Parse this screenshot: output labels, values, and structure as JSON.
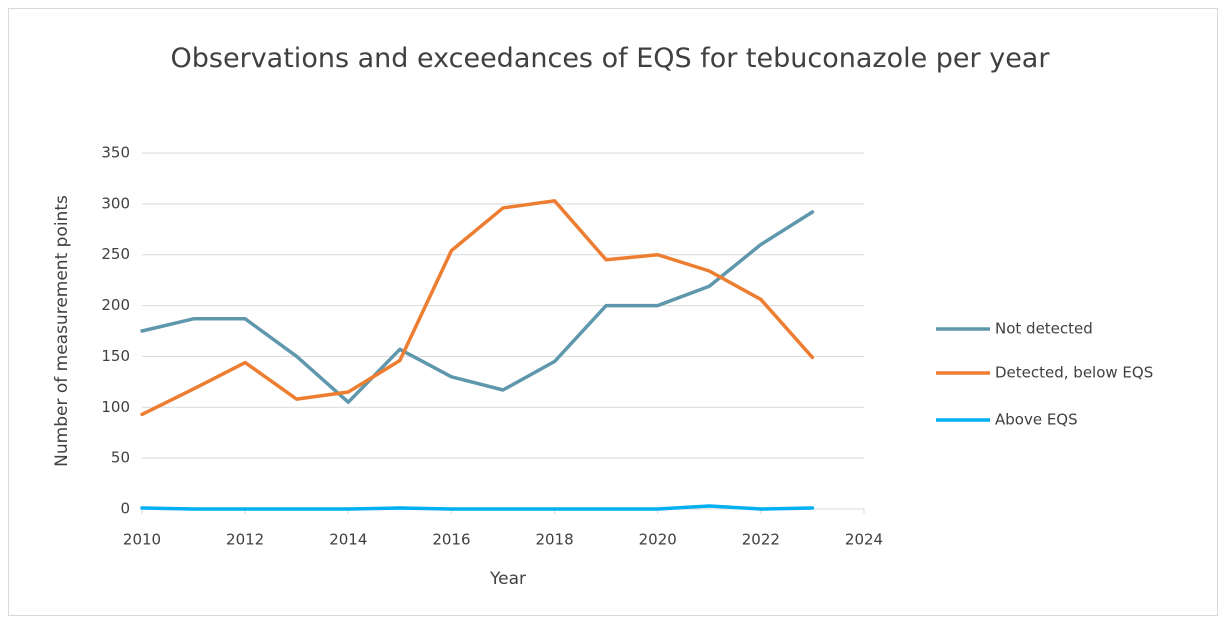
{
  "chart_data": {
    "type": "line",
    "title": "Observations and exceedances of EQS for tebuconazole per year",
    "x_label": "Year",
    "y_label": "Number of measurement points",
    "x": [
      2010,
      2011,
      2012,
      2013,
      2014,
      2015,
      2016,
      2017,
      2018,
      2019,
      2020,
      2021,
      2022,
      2023
    ],
    "series": [
      {
        "name": "Not detected",
        "color": "#5f98ad",
        "values": [
          175,
          187,
          187,
          150,
          105,
          157,
          130,
          117,
          145,
          200,
          200,
          219,
          260,
          292
        ]
      },
      {
        "name": "Detected, below EQS",
        "color": "#ed7d31",
        "values": [
          93,
          118,
          144,
          108,
          115,
          146,
          254,
          296,
          303,
          245,
          250,
          234,
          206,
          149
        ]
      },
      {
        "name": "Above EQS",
        "color": "#00b0f0",
        "values": [
          1,
          0,
          0,
          0,
          0,
          1,
          0,
          0,
          0,
          0,
          0,
          3,
          0,
          1
        ]
      }
    ],
    "xlim": [
      2010,
      2024
    ],
    "xticks": [
      2010,
      2012,
      2014,
      2016,
      2018,
      2020,
      2022,
      2024
    ],
    "ylim": [
      0,
      350
    ],
    "yticks": [
      0,
      50,
      100,
      150,
      200,
      250,
      300,
      350
    ],
    "grid": true,
    "legend": "right"
  }
}
